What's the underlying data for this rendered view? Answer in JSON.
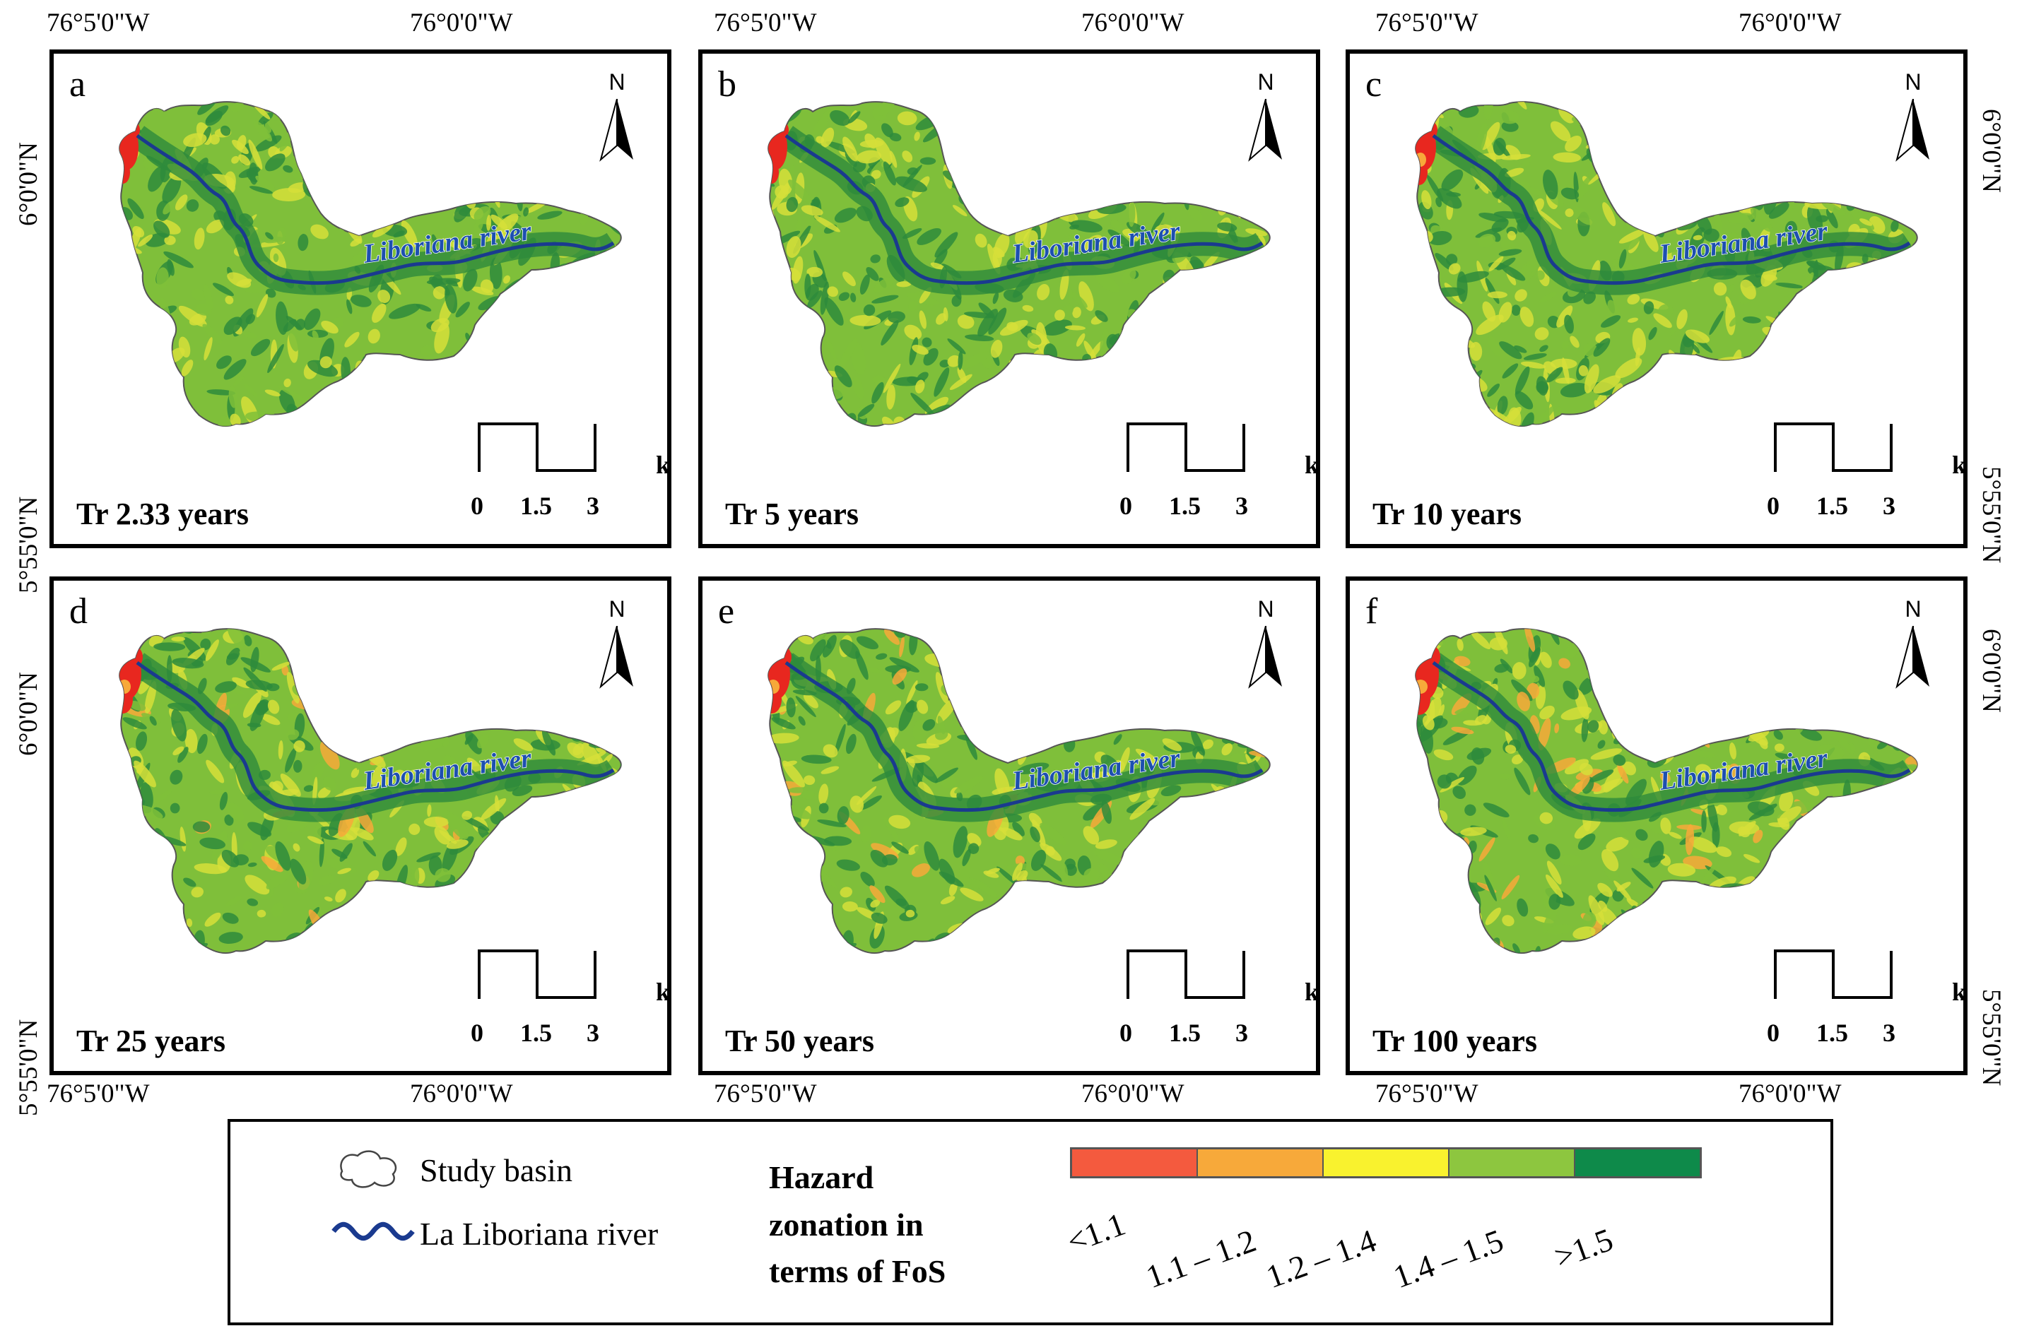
{
  "coords": {
    "lon_west": "76°5'0\"W",
    "lon_east": "76°0'0\"W",
    "lat_north": "6°0'0\"N",
    "lat_south": "5°55'0\"N"
  },
  "panels": [
    {
      "letter": "a",
      "title": "Tr 2.33 years",
      "hazard_level": 1
    },
    {
      "letter": "b",
      "title": "Tr 5 years",
      "hazard_level": 1
    },
    {
      "letter": "c",
      "title": "Tr 10 years",
      "hazard_level": 2
    },
    {
      "letter": "d",
      "title": "Tr 25 years",
      "hazard_level": 3
    },
    {
      "letter": "e",
      "title": "Tr 50 years",
      "hazard_level": 3
    },
    {
      "letter": "f",
      "title": "Tr 100 years",
      "hazard_level": 4
    }
  ],
  "map_labels": {
    "river": "Liboriana river",
    "north": "N",
    "scale_unit": "km",
    "scale_ticks": [
      "0",
      "1.5",
      "3"
    ]
  },
  "legend": {
    "study_basin": "Study basin",
    "river": "La Liboriana river",
    "title_lines": [
      "Hazard",
      "zonation in",
      "terms of FoS"
    ],
    "classes": [
      {
        "label": "<1.1",
        "color": "#f45a3e"
      },
      {
        "label": "1.1 – 1.2",
        "color": "#f7a93a"
      },
      {
        "label": "1.2 – 1.4",
        "color": "#f9f22e"
      },
      {
        "label": "1.4 – 1.5",
        "color": "#8dc63f"
      },
      {
        "label": ">1.5",
        "color": "#0e8a4a"
      }
    ]
  },
  "colors": {
    "river": "#1a3a8f",
    "river_label": "#1d4fb0",
    "basin_dark": "#2e8b3c",
    "basin_mid": "#7fbf3a",
    "basin_light": "#d6df3a",
    "hazard_red": "#e8271f"
  }
}
